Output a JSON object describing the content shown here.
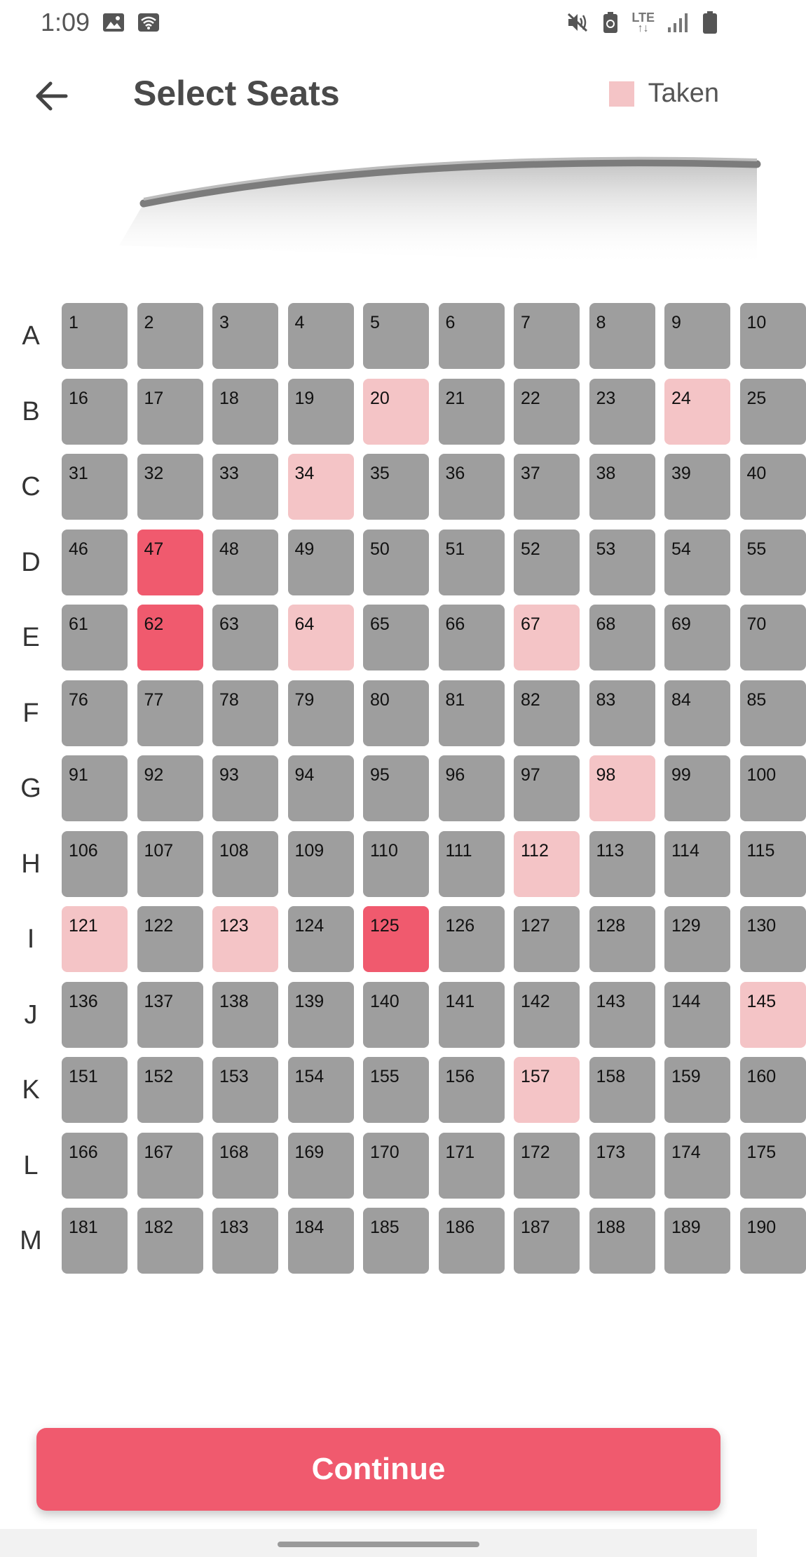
{
  "status_bar": {
    "time": "1:09",
    "lte_label": "LTE",
    "icons": [
      "image-icon",
      "wifi-calling-icon",
      "mute-icon",
      "battery-saver-icon",
      "lte-icon",
      "signal-icon",
      "battery-icon"
    ]
  },
  "header": {
    "title": "Select Seats",
    "back_icon": "arrow-left-icon",
    "legend": {
      "label": "Taken",
      "color": "#f4c4c6"
    }
  },
  "colors": {
    "available": "#9e9e9e",
    "taken": "#f4c4c6",
    "selected": "#f05a6e",
    "accent": "#f05a6e"
  },
  "seat_map": {
    "rows": [
      {
        "label": "A",
        "seats": [
          {
            "number": "1",
            "status": "available"
          },
          {
            "number": "2",
            "status": "available"
          },
          {
            "number": "3",
            "status": "available"
          },
          {
            "number": "4",
            "status": "available"
          },
          {
            "number": "5",
            "status": "available"
          },
          {
            "number": "6",
            "status": "available"
          },
          {
            "number": "7",
            "status": "available"
          },
          {
            "number": "8",
            "status": "available"
          },
          {
            "number": "9",
            "status": "available"
          },
          {
            "number": "10",
            "status": "available"
          }
        ]
      },
      {
        "label": "B",
        "seats": [
          {
            "number": "16",
            "status": "available"
          },
          {
            "number": "17",
            "status": "available"
          },
          {
            "number": "18",
            "status": "available"
          },
          {
            "number": "19",
            "status": "available"
          },
          {
            "number": "20",
            "status": "taken"
          },
          {
            "number": "21",
            "status": "available"
          },
          {
            "number": "22",
            "status": "available"
          },
          {
            "number": "23",
            "status": "available"
          },
          {
            "number": "24",
            "status": "taken"
          },
          {
            "number": "25",
            "status": "available"
          }
        ]
      },
      {
        "label": "C",
        "seats": [
          {
            "number": "31",
            "status": "available"
          },
          {
            "number": "32",
            "status": "available"
          },
          {
            "number": "33",
            "status": "available"
          },
          {
            "number": "34",
            "status": "taken"
          },
          {
            "number": "35",
            "status": "available"
          },
          {
            "number": "36",
            "status": "available"
          },
          {
            "number": "37",
            "status": "available"
          },
          {
            "number": "38",
            "status": "available"
          },
          {
            "number": "39",
            "status": "available"
          },
          {
            "number": "40",
            "status": "available"
          }
        ]
      },
      {
        "label": "D",
        "seats": [
          {
            "number": "46",
            "status": "available"
          },
          {
            "number": "47",
            "status": "selected"
          },
          {
            "number": "48",
            "status": "available"
          },
          {
            "number": "49",
            "status": "available"
          },
          {
            "number": "50",
            "status": "available"
          },
          {
            "number": "51",
            "status": "available"
          },
          {
            "number": "52",
            "status": "available"
          },
          {
            "number": "53",
            "status": "available"
          },
          {
            "number": "54",
            "status": "available"
          },
          {
            "number": "55",
            "status": "available"
          }
        ]
      },
      {
        "label": "E",
        "seats": [
          {
            "number": "61",
            "status": "available"
          },
          {
            "number": "62",
            "status": "selected"
          },
          {
            "number": "63",
            "status": "available"
          },
          {
            "number": "64",
            "status": "taken"
          },
          {
            "number": "65",
            "status": "available"
          },
          {
            "number": "66",
            "status": "available"
          },
          {
            "number": "67",
            "status": "taken"
          },
          {
            "number": "68",
            "status": "available"
          },
          {
            "number": "69",
            "status": "available"
          },
          {
            "number": "70",
            "status": "available"
          }
        ]
      },
      {
        "label": "F",
        "seats": [
          {
            "number": "76",
            "status": "available"
          },
          {
            "number": "77",
            "status": "available"
          },
          {
            "number": "78",
            "status": "available"
          },
          {
            "number": "79",
            "status": "available"
          },
          {
            "number": "80",
            "status": "available"
          },
          {
            "number": "81",
            "status": "available"
          },
          {
            "number": "82",
            "status": "available"
          },
          {
            "number": "83",
            "status": "available"
          },
          {
            "number": "84",
            "status": "available"
          },
          {
            "number": "85",
            "status": "available"
          }
        ]
      },
      {
        "label": "G",
        "seats": [
          {
            "number": "91",
            "status": "available"
          },
          {
            "number": "92",
            "status": "available"
          },
          {
            "number": "93",
            "status": "available"
          },
          {
            "number": "94",
            "status": "available"
          },
          {
            "number": "95",
            "status": "available"
          },
          {
            "number": "96",
            "status": "available"
          },
          {
            "number": "97",
            "status": "available"
          },
          {
            "number": "98",
            "status": "taken"
          },
          {
            "number": "99",
            "status": "available"
          },
          {
            "number": "100",
            "status": "available"
          }
        ]
      },
      {
        "label": "H",
        "seats": [
          {
            "number": "106",
            "status": "available"
          },
          {
            "number": "107",
            "status": "available"
          },
          {
            "number": "108",
            "status": "available"
          },
          {
            "number": "109",
            "status": "available"
          },
          {
            "number": "110",
            "status": "available"
          },
          {
            "number": "111",
            "status": "available"
          },
          {
            "number": "112",
            "status": "taken"
          },
          {
            "number": "113",
            "status": "available"
          },
          {
            "number": "114",
            "status": "available"
          },
          {
            "number": "115",
            "status": "available"
          }
        ]
      },
      {
        "label": "I",
        "seats": [
          {
            "number": "121",
            "status": "taken"
          },
          {
            "number": "122",
            "status": "available"
          },
          {
            "number": "123",
            "status": "taken"
          },
          {
            "number": "124",
            "status": "available"
          },
          {
            "number": "125",
            "status": "selected"
          },
          {
            "number": "126",
            "status": "available"
          },
          {
            "number": "127",
            "status": "available"
          },
          {
            "number": "128",
            "status": "available"
          },
          {
            "number": "129",
            "status": "available"
          },
          {
            "number": "130",
            "status": "available"
          }
        ]
      },
      {
        "label": "J",
        "seats": [
          {
            "number": "136",
            "status": "available"
          },
          {
            "number": "137",
            "status": "available"
          },
          {
            "number": "138",
            "status": "available"
          },
          {
            "number": "139",
            "status": "available"
          },
          {
            "number": "140",
            "status": "available"
          },
          {
            "number": "141",
            "status": "available"
          },
          {
            "number": "142",
            "status": "available"
          },
          {
            "number": "143",
            "status": "available"
          },
          {
            "number": "144",
            "status": "available"
          },
          {
            "number": "145",
            "status": "taken"
          }
        ]
      },
      {
        "label": "K",
        "seats": [
          {
            "number": "151",
            "status": "available"
          },
          {
            "number": "152",
            "status": "available"
          },
          {
            "number": "153",
            "status": "available"
          },
          {
            "number": "154",
            "status": "available"
          },
          {
            "number": "155",
            "status": "available"
          },
          {
            "number": "156",
            "status": "available"
          },
          {
            "number": "157",
            "status": "taken"
          },
          {
            "number": "158",
            "status": "available"
          },
          {
            "number": "159",
            "status": "available"
          },
          {
            "number": "160",
            "status": "available"
          }
        ]
      },
      {
        "label": "L",
        "seats": [
          {
            "number": "166",
            "status": "available"
          },
          {
            "number": "167",
            "status": "available"
          },
          {
            "number": "168",
            "status": "available"
          },
          {
            "number": "169",
            "status": "available"
          },
          {
            "number": "170",
            "status": "available"
          },
          {
            "number": "171",
            "status": "available"
          },
          {
            "number": "172",
            "status": "available"
          },
          {
            "number": "173",
            "status": "available"
          },
          {
            "number": "174",
            "status": "available"
          },
          {
            "number": "175",
            "status": "available"
          }
        ]
      },
      {
        "label": "M",
        "seats": [
          {
            "number": "181",
            "status": "available"
          },
          {
            "number": "182",
            "status": "available"
          },
          {
            "number": "183",
            "status": "available"
          },
          {
            "number": "184",
            "status": "available"
          },
          {
            "number": "185",
            "status": "available"
          },
          {
            "number": "186",
            "status": "available"
          },
          {
            "number": "187",
            "status": "available"
          },
          {
            "number": "188",
            "status": "available"
          },
          {
            "number": "189",
            "status": "available"
          },
          {
            "number": "190",
            "status": "available"
          }
        ]
      }
    ]
  },
  "footer": {
    "continue_label": "Continue"
  }
}
